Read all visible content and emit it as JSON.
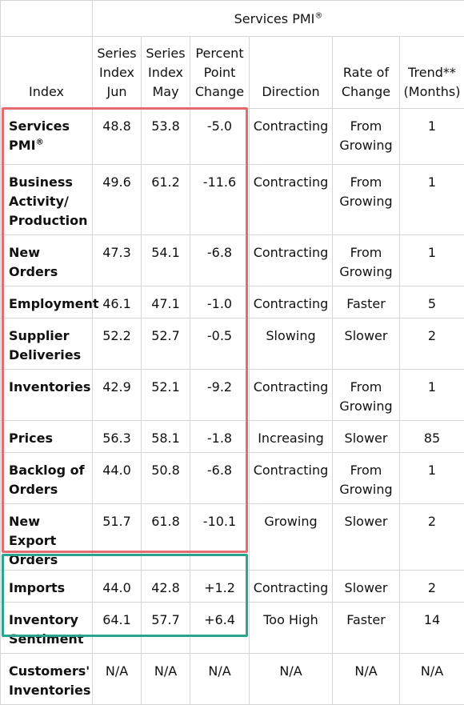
{
  "header": {
    "group_title": "Services PMI",
    "group_title_mark": "®",
    "columns": [
      "Index",
      "Series Index Jun",
      "Series Index May",
      "Percent Point Change",
      "Direction",
      "Rate of Change",
      "Trend** (Months)"
    ]
  },
  "rows": [
    {
      "index": "Services PMI",
      "mark": "®",
      "jun": "48.8",
      "may": "53.8",
      "change": "-5.0",
      "direction": "Contracting",
      "rate": "From Growing",
      "trend": "1"
    },
    {
      "index": "Business Activity/ Production",
      "mark": "",
      "jun": "49.6",
      "may": "61.2",
      "change": "-11.6",
      "direction": "Contracting",
      "rate": "From Growing",
      "trend": "1"
    },
    {
      "index": "New Orders",
      "mark": "",
      "jun": "47.3",
      "may": "54.1",
      "change": "-6.8",
      "direction": "Contracting",
      "rate": "From Growing",
      "trend": "1"
    },
    {
      "index": "Employment",
      "mark": "",
      "jun": "46.1",
      "may": "47.1",
      "change": "-1.0",
      "direction": "Contracting",
      "rate": "Faster",
      "trend": "5"
    },
    {
      "index": "Supplier Deliveries",
      "mark": "",
      "jun": "52.2",
      "may": "52.7",
      "change": "-0.5",
      "direction": "Slowing",
      "rate": "Slower",
      "trend": "2"
    },
    {
      "index": "Inventories",
      "mark": "",
      "jun": "42.9",
      "may": "52.1",
      "change": "-9.2",
      "direction": "Contracting",
      "rate": "From Growing",
      "trend": "1"
    },
    {
      "index": "Prices",
      "mark": "",
      "jun": "56.3",
      "may": "58.1",
      "change": "-1.8",
      "direction": "Increasing",
      "rate": "Slower",
      "trend": "85"
    },
    {
      "index": "Backlog of Orders",
      "mark": "",
      "jun": "44.0",
      "may": "50.8",
      "change": "-6.8",
      "direction": "Contracting",
      "rate": "From Growing",
      "trend": "1"
    },
    {
      "index": "New Export Orders",
      "mark": "",
      "jun": "51.7",
      "may": "61.8",
      "change": "-10.1",
      "direction": "Growing",
      "rate": "Slower",
      "trend": "2"
    },
    {
      "index": "Imports",
      "mark": "",
      "jun": "44.0",
      "may": "42.8",
      "change": "+1.2",
      "direction": "Contracting",
      "rate": "Slower",
      "trend": "2"
    },
    {
      "index": "Inventory Sentiment",
      "mark": "",
      "jun": "64.1",
      "may": "57.7",
      "change": "+6.4",
      "direction": "Too High",
      "rate": "Faster",
      "trend": "14"
    },
    {
      "index": "Customers' Inventories",
      "mark": "",
      "jun": "N/A",
      "may": "N/A",
      "change": "N/A",
      "direction": "N/A",
      "rate": "N/A",
      "trend": "N/A"
    }
  ],
  "highlight_colors": {
    "group_one": "#e46c70",
    "group_two": "#2aa38f"
  }
}
